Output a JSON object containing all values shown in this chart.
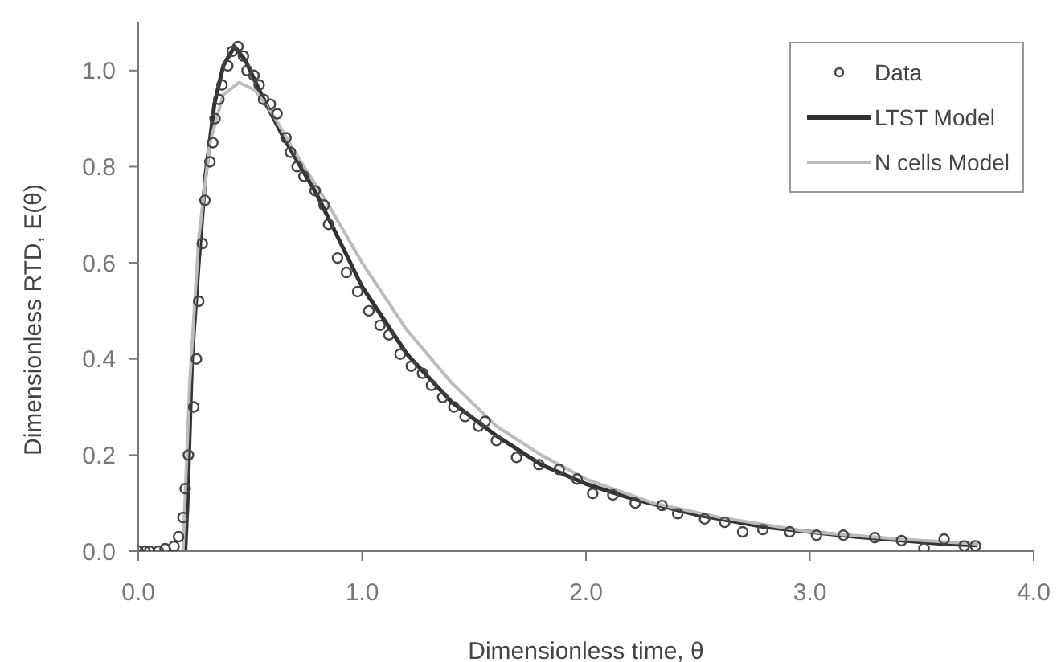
{
  "chart_data": {
    "type": "scatter",
    "xlabel": "Dimensionless time, θ",
    "ylabel": "Dimensionless RTD, E(θ)",
    "xlim": [
      0,
      4
    ],
    "xticks": [
      {
        "value": 0,
        "label": "0.0"
      },
      {
        "value": 1,
        "label": "1.0"
      },
      {
        "value": 2,
        "label": "2.0"
      },
      {
        "value": 3,
        "label": "3.0"
      },
      {
        "value": 4,
        "label": "4.0"
      }
    ],
    "ylim": [
      0,
      1.1
    ],
    "yticks": [
      {
        "value": 0,
        "label": "0.0"
      },
      {
        "value": 0.2,
        "label": "0.2"
      },
      {
        "value": 0.4,
        "label": "0.4"
      },
      {
        "value": 0.6,
        "label": "0.6"
      },
      {
        "value": 0.8,
        "label": "0.8"
      },
      {
        "value": 1,
        "label": "1.0"
      }
    ],
    "grid": false,
    "legend": "top right",
    "series": [
      {
        "name": "Data",
        "marker": "circle",
        "color": "#444444",
        "x": [
          0,
          0.03,
          0.05,
          0.09,
          0.12,
          0.16,
          0.18,
          0.2,
          0.21,
          0.224,
          0.248,
          0.26,
          0.27,
          0.286,
          0.298,
          0.32,
          0.333,
          0.343,
          0.36,
          0.374,
          0.4,
          0.42,
          0.445,
          0.47,
          0.486,
          0.517,
          0.54,
          0.56,
          0.59,
          0.62,
          0.66,
          0.68,
          0.71,
          0.74,
          0.79,
          0.83,
          0.85,
          0.89,
          0.93,
          0.98,
          1.03,
          1.08,
          1.12,
          1.17,
          1.22,
          1.27,
          1.31,
          1.36,
          1.41,
          1.46,
          1.52,
          1.55,
          1.6,
          1.69,
          1.79,
          1.88,
          1.96,
          2.03,
          2.12,
          2.22,
          2.34,
          2.41,
          2.53,
          2.62,
          2.7,
          2.79,
          2.91,
          3.03,
          3.15,
          3.29,
          3.41,
          3.51,
          3.6,
          3.69,
          3.74
        ],
        "values": [
          0,
          0,
          0,
          0,
          0.005,
          0.01,
          0.03,
          0.07,
          0.13,
          0.2,
          0.3,
          0.4,
          0.52,
          0.64,
          0.73,
          0.81,
          0.85,
          0.9,
          0.94,
          0.97,
          1.01,
          1.04,
          1.05,
          1.03,
          1,
          0.99,
          0.97,
          0.94,
          0.93,
          0.91,
          0.86,
          0.83,
          0.8,
          0.78,
          0.75,
          0.72,
          0.68,
          0.61,
          0.58,
          0.54,
          0.5,
          0.47,
          0.45,
          0.41,
          0.385,
          0.37,
          0.345,
          0.32,
          0.3,
          0.28,
          0.26,
          0.27,
          0.23,
          0.195,
          0.18,
          0.17,
          0.15,
          0.12,
          0.117,
          0.1,
          0.095,
          0.078,
          0.067,
          0.06,
          0.04,
          0.045,
          0.04,
          0.033,
          0.033,
          0.028,
          0.022,
          0.006,
          0.025,
          0.011,
          0.011
        ]
      },
      {
        "name": "LTST Model",
        "type": "line",
        "marker": "none",
        "color": "#333333",
        "x": [
          0.21,
          0.22,
          0.24,
          0.27,
          0.3,
          0.34,
          0.38,
          0.43,
          0.48,
          0.55,
          0.65,
          0.8,
          1,
          1.2,
          1.4,
          1.6,
          1.8,
          2,
          2.2,
          2.5,
          2.8,
          3.2,
          3.6,
          3.75
        ],
        "values": [
          0,
          0.1,
          0.4,
          0.6,
          0.78,
          0.93,
          1.01,
          1.05,
          1.02,
          0.95,
          0.86,
          0.74,
          0.55,
          0.41,
          0.31,
          0.24,
          0.18,
          0.14,
          0.11,
          0.075,
          0.05,
          0.03,
          0.015,
          0.012
        ]
      },
      {
        "name": "N cells Model",
        "type": "line",
        "marker": "none",
        "color": "#bbbbbb",
        "x": [
          0.2,
          0.23,
          0.27,
          0.32,
          0.38,
          0.45,
          0.52,
          0.6,
          0.7,
          0.85,
          1,
          1.2,
          1.4,
          1.6,
          1.8,
          2,
          2.3,
          2.6,
          3,
          3.4,
          3.75
        ],
        "values": [
          0,
          0.35,
          0.65,
          0.85,
          0.95,
          0.975,
          0.96,
          0.91,
          0.83,
          0.72,
          0.6,
          0.46,
          0.35,
          0.26,
          0.2,
          0.15,
          0.1,
          0.07,
          0.04,
          0.025,
          0.015
        ]
      }
    ]
  }
}
